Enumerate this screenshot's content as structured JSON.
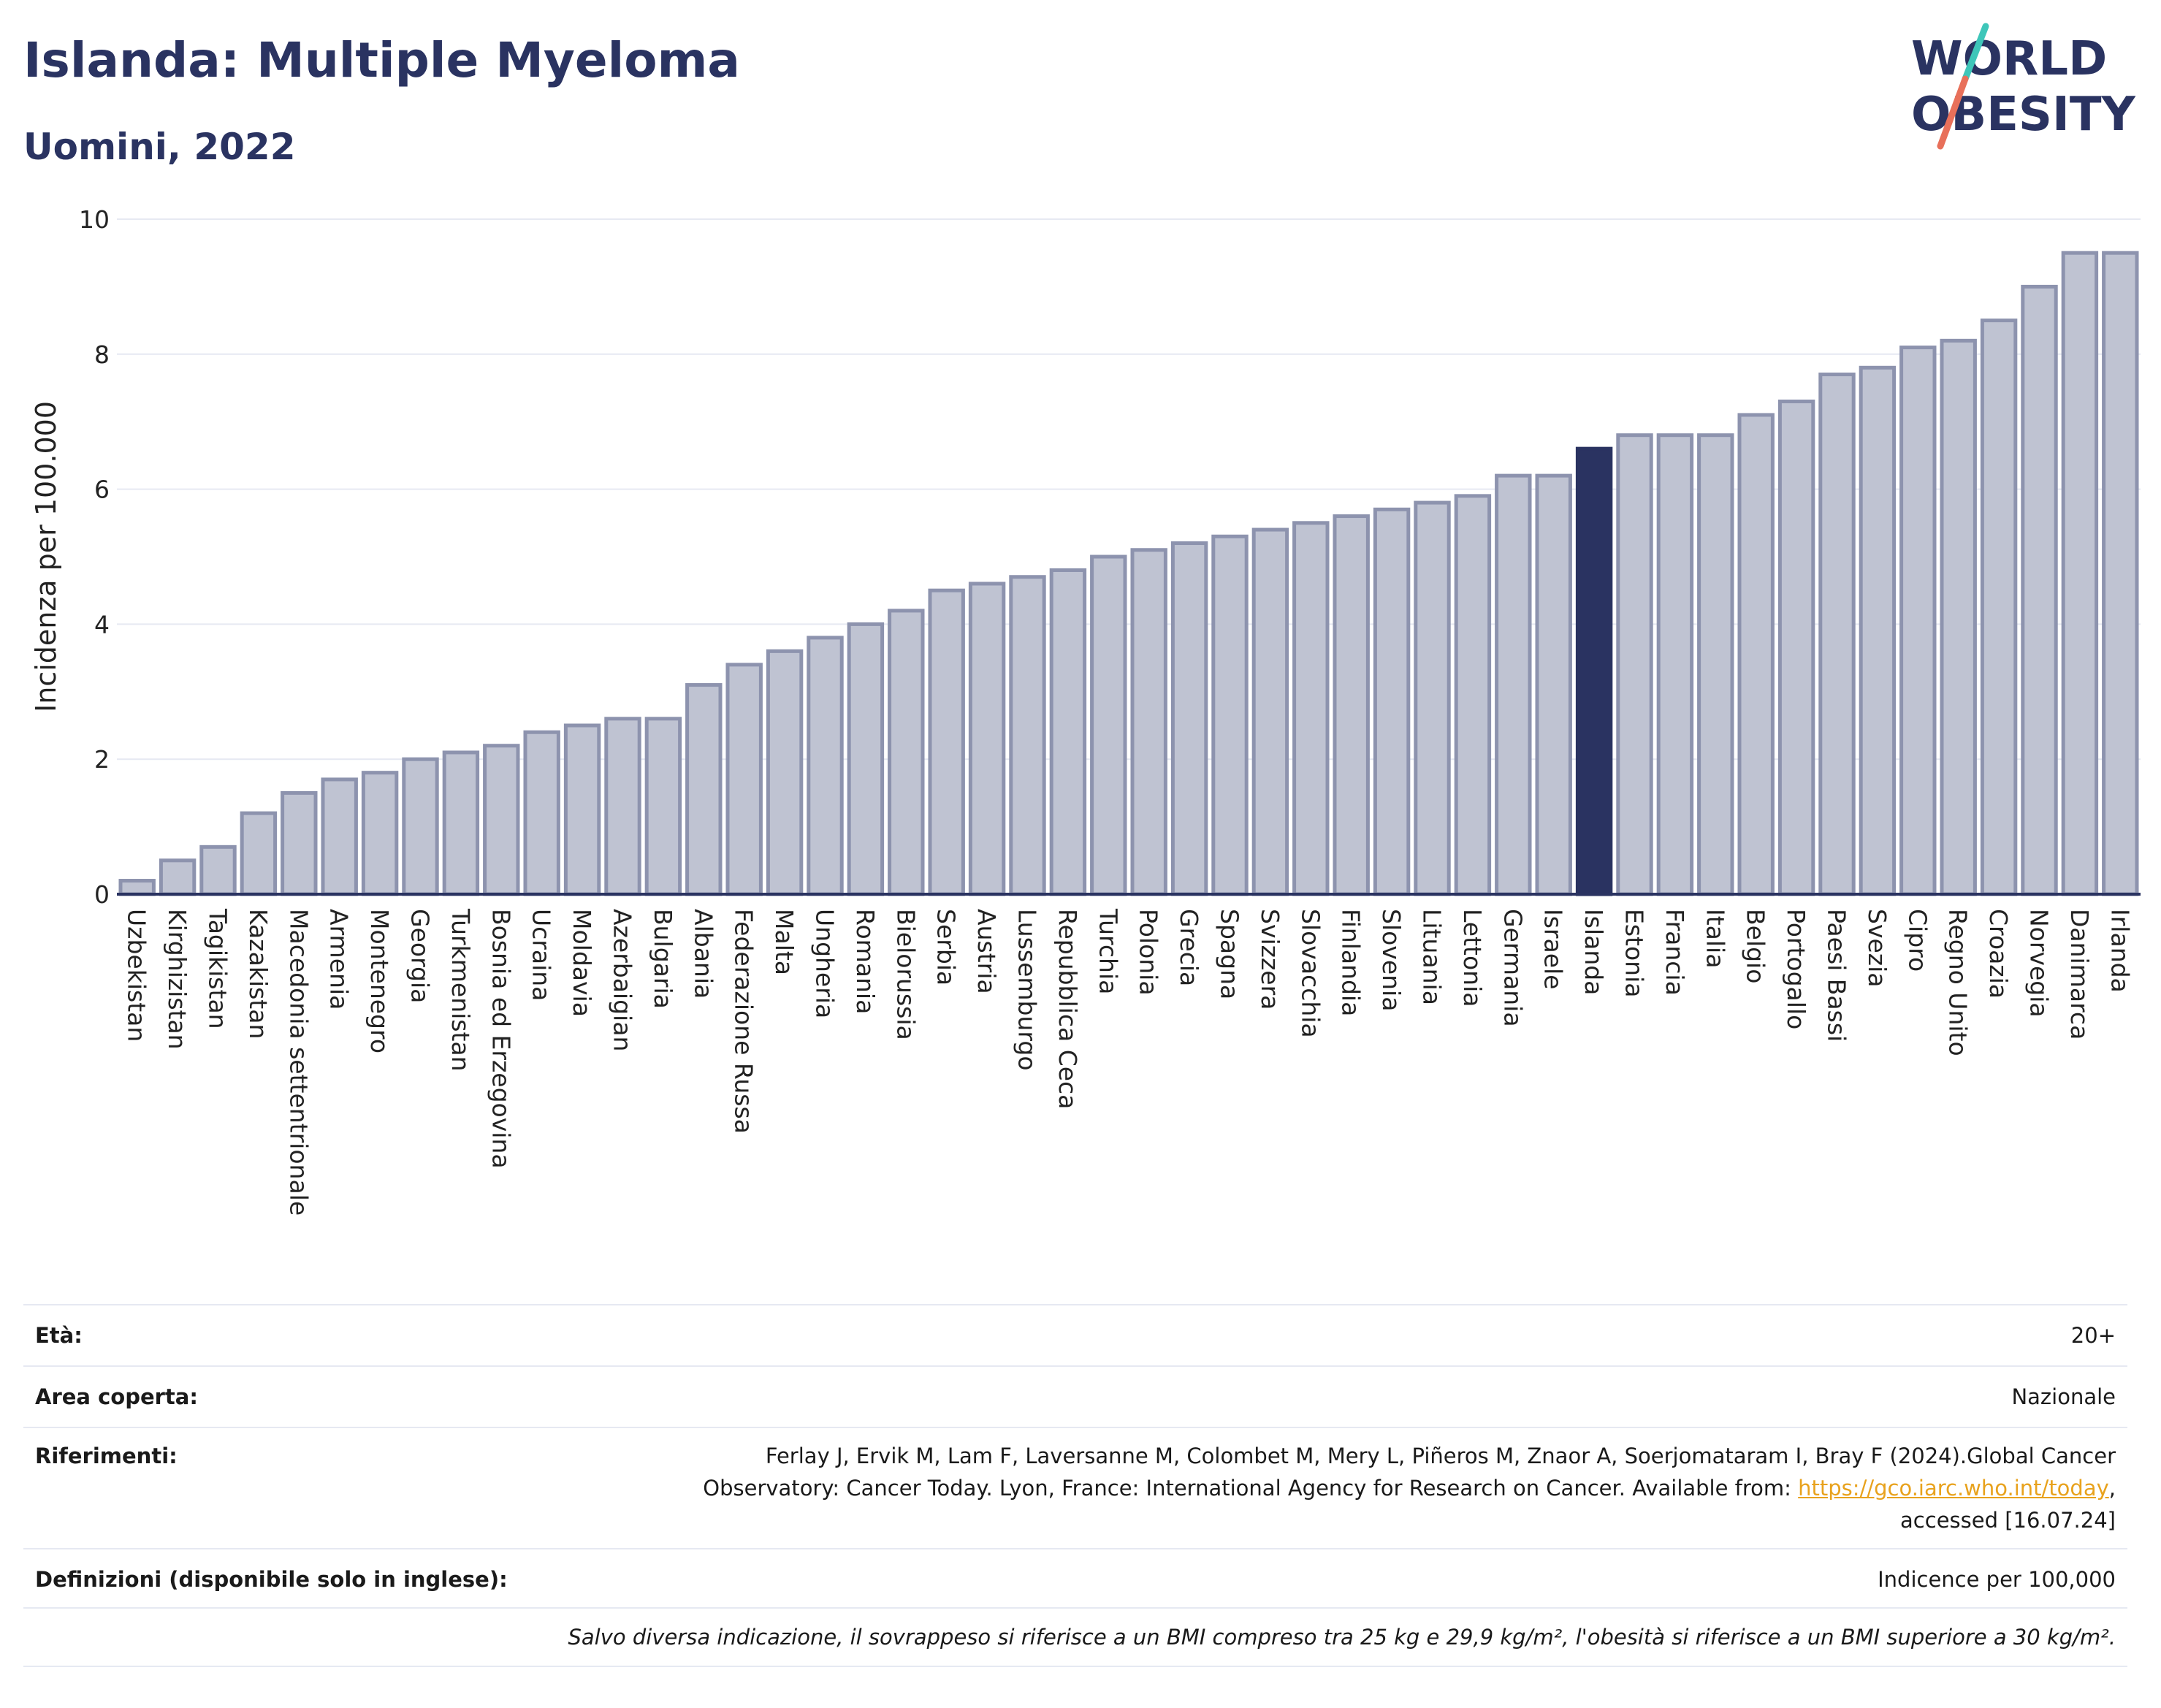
{
  "header": {
    "title": "Islanda: Multiple Myeloma",
    "subtitle": "Uomini, 2022",
    "logo_top": "WORLD",
    "logo_bottom": "OBESITY"
  },
  "colors": {
    "bar": "#bfc3d2",
    "bar_stroke": "#8d93ae",
    "highlight": "#2a3361",
    "grid": "#e6e9f2",
    "axis": "#2a3361",
    "title": "#2a3361",
    "logo_slash_top": "#3ec6b9",
    "logo_slash_bottom": "#e8705a"
  },
  "chart_data": {
    "type": "bar",
    "title": "Islanda: Multiple Myeloma",
    "subtitle": "Uomini, 2022",
    "ylabel": "Incidenza per 100.000",
    "xlabel": "",
    "ylim": [
      0,
      10
    ],
    "yticks": [
      0,
      2,
      4,
      6,
      8,
      10
    ],
    "grid": true,
    "highlight": "Islanda",
    "categories": [
      "Uzbekistan",
      "Kirghizistan",
      "Tagikistan",
      "Kazakistan",
      "Macedonia settentrionale",
      "Armenia",
      "Montenegro",
      "Georgia",
      "Turkmenistan",
      "Bosnia ed Erzegovina",
      "Ucraina",
      "Moldavia",
      "Azerbaigian",
      "Bulgaria",
      "Albania",
      "Federazione Russa",
      "Malta",
      "Ungheria",
      "Romania",
      "Bielorussia",
      "Serbia",
      "Austria",
      "Lussemburgo",
      "Repubblica Ceca",
      "Turchia",
      "Polonia",
      "Grecia",
      "Spagna",
      "Svizzera",
      "Slovacchia",
      "Finlandia",
      "Slovenia",
      "Lituania",
      "Lettonia",
      "Germania",
      "Israele",
      "Islanda",
      "Estonia",
      "Francia",
      "Italia",
      "Belgio",
      "Portogallo",
      "Paesi Bassi",
      "Svezia",
      "Cipro",
      "Regno Unito",
      "Croazia",
      "Norvegia",
      "Danimarca",
      "Irlanda"
    ],
    "values": [
      0.2,
      0.5,
      0.7,
      1.2,
      1.5,
      1.7,
      1.8,
      2.0,
      2.1,
      2.2,
      2.4,
      2.5,
      2.6,
      2.6,
      3.1,
      3.4,
      3.6,
      3.8,
      4.0,
      4.2,
      4.5,
      4.6,
      4.7,
      4.8,
      5.0,
      5.1,
      5.2,
      5.3,
      5.4,
      5.5,
      5.6,
      5.7,
      5.8,
      5.9,
      6.2,
      6.2,
      6.6,
      6.8,
      6.8,
      6.8,
      7.1,
      7.3,
      7.7,
      7.8,
      8.1,
      8.2,
      8.5,
      9.0,
      9.5,
      9.5
    ]
  },
  "info": {
    "age_label": "Età:",
    "age_value": "20+",
    "area_label": "Area coperta:",
    "area_value": "Nazionale",
    "ref_label": "Riferimenti:",
    "ref_line1": "Ferlay J, Ervik M, Lam F, Laversanne M, Colombet M, Mery L, Piñeros M, Znaor A, Soerjomataram I, Bray F (2024).Global Cancer",
    "ref_line2_pre": "Observatory: Cancer Today. Lyon, France: International Agency for Research on Cancer. Available from: ",
    "ref_link": "https://gco.iarc.who.int/today",
    "ref_line2_post": ",",
    "ref_line3": "accessed [16.07.24]",
    "def_label": "Definizioni (disponibile solo in inglese):",
    "def_value": "Indicence per 100,000",
    "footnote": "Salvo diversa indicazione, il sovrappeso si riferisce a un BMI compreso tra 25 kg e 29,9 kg/m², l'obesità si riferisce a un BMI superiore a 30 kg/m²."
  }
}
